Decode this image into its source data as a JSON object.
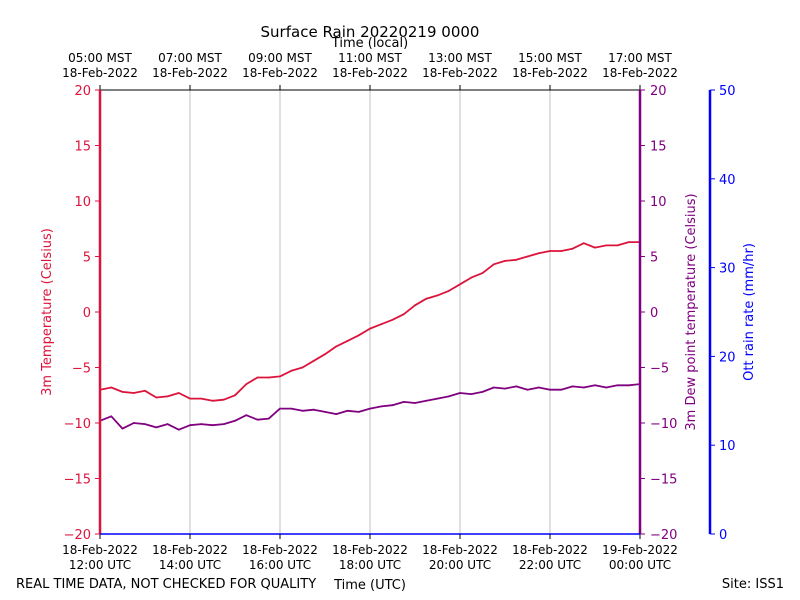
{
  "chart_data": {
    "type": "line",
    "title": "Surface Rain 20220219 0000",
    "xlabel_top": "Time (local)",
    "xlabel": "Time (UTC)",
    "footer_left": "REAL TIME DATA, NOT CHECKED FOR QUALITY",
    "footer_right": "Site: ISS1",
    "x_hours_range": [
      12,
      24
    ],
    "bottom_ticks": [
      {
        "date": "18-Feb-2022",
        "time": "12:00 UTC"
      },
      {
        "date": "18-Feb-2022",
        "time": "14:00 UTC"
      },
      {
        "date": "18-Feb-2022",
        "time": "16:00 UTC"
      },
      {
        "date": "18-Feb-2022",
        "time": "18:00 UTC"
      },
      {
        "date": "18-Feb-2022",
        "time": "20:00 UTC"
      },
      {
        "date": "18-Feb-2022",
        "time": "22:00 UTC"
      },
      {
        "date": "19-Feb-2022",
        "time": "00:00 UTC"
      }
    ],
    "top_ticks": [
      {
        "time": "05:00 MST",
        "date": "18-Feb-2022"
      },
      {
        "time": "07:00 MST",
        "date": "18-Feb-2022"
      },
      {
        "time": "09:00 MST",
        "date": "18-Feb-2022"
      },
      {
        "time": "11:00 MST",
        "date": "18-Feb-2022"
      },
      {
        "time": "13:00 MST",
        "date": "18-Feb-2022"
      },
      {
        "time": "15:00 MST",
        "date": "18-Feb-2022"
      },
      {
        "time": "17:00 MST",
        "date": "18-Feb-2022"
      }
    ],
    "axes": {
      "left": {
        "label": "3m Temperature (Celsius)",
        "range": [
          -20,
          20
        ],
        "ticks": [
          -20,
          -15,
          -10,
          -5,
          0,
          5,
          10,
          15,
          20
        ],
        "color": "#dc143c"
      },
      "right": {
        "label": "3m Dew point temperature (Celsius)",
        "range": [
          -20,
          20
        ],
        "ticks": [
          -20,
          -15,
          -10,
          -5,
          0,
          5,
          10,
          15,
          20
        ],
        "color": "#800080"
      },
      "rain": {
        "label": "Ott rain rate (mm/hr)",
        "range": [
          0,
          50
        ],
        "ticks": [
          0,
          10,
          20,
          30,
          40,
          50
        ],
        "color": "#0000ff"
      }
    },
    "grid": true,
    "series": [
      {
        "color": "#dc143c",
        "axis": "left",
        "x": [
          12.0,
          12.25,
          12.5,
          12.75,
          13.0,
          13.25,
          13.5,
          13.75,
          14.0,
          14.25,
          14.5,
          14.75,
          15.0,
          15.25,
          15.5,
          15.75,
          16.0,
          16.25,
          16.5,
          16.75,
          17.0,
          17.25,
          17.5,
          17.75,
          18.0,
          18.25,
          18.5,
          18.75,
          19.0,
          19.25,
          19.5,
          19.75,
          20.0,
          20.25,
          20.5,
          20.75,
          21.0,
          21.25,
          21.5,
          21.75,
          22.0,
          22.25,
          22.5,
          22.75,
          23.0,
          23.25,
          23.5,
          23.75,
          24.0
        ],
        "values": [
          -7.0,
          -6.8,
          -7.2,
          -7.3,
          -7.1,
          -7.7,
          -7.6,
          -7.3,
          -7.8,
          -7.8,
          -8.0,
          -7.9,
          -7.5,
          -6.5,
          -5.9,
          -5.9,
          -5.8,
          -5.3,
          -5.0,
          -4.4,
          -3.8,
          -3.1,
          -2.6,
          -2.1,
          -1.5,
          -1.1,
          -0.7,
          -0.2,
          0.6,
          1.2,
          1.5,
          1.9,
          2.5,
          3.1,
          3.5,
          4.3,
          4.6,
          4.7,
          5.0,
          5.3,
          5.5,
          5.5,
          5.7,
          6.2,
          5.8,
          6.0,
          6.0,
          6.3,
          6.3
        ]
      },
      {
        "color": "#800080",
        "axis": "right",
        "x": [
          12.0,
          12.25,
          12.5,
          12.75,
          13.0,
          13.25,
          13.5,
          13.75,
          14.0,
          14.25,
          14.5,
          14.75,
          15.0,
          15.25,
          15.5,
          15.75,
          16.0,
          16.25,
          16.5,
          16.75,
          17.0,
          17.25,
          17.5,
          17.75,
          18.0,
          18.25,
          18.5,
          18.75,
          19.0,
          19.25,
          19.5,
          19.75,
          20.0,
          20.25,
          20.5,
          20.75,
          21.0,
          21.25,
          21.5,
          21.75,
          22.0,
          22.25,
          22.5,
          22.75,
          23.0,
          23.25,
          23.5,
          23.75,
          24.0
        ],
        "values": [
          -9.8,
          -9.4,
          -10.5,
          -10.0,
          -10.1,
          -10.4,
          -10.1,
          -10.6,
          -10.2,
          -10.1,
          -10.2,
          -10.1,
          -9.8,
          -9.3,
          -9.7,
          -9.6,
          -8.7,
          -8.7,
          -8.9,
          -8.8,
          -9.0,
          -9.2,
          -8.9,
          -9.0,
          -8.7,
          -8.5,
          -8.4,
          -8.1,
          -8.2,
          -8.0,
          -7.8,
          -7.6,
          -7.3,
          -7.4,
          -7.2,
          -6.8,
          -6.9,
          -6.7,
          -7.0,
          -6.8,
          -7.0,
          -7.0,
          -6.7,
          -6.8,
          -6.6,
          -6.8,
          -6.6,
          -6.6,
          -6.5
        ]
      }
    ]
  }
}
